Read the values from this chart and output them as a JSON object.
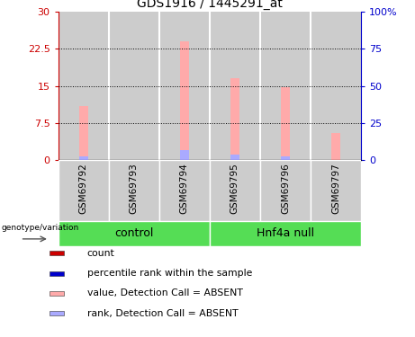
{
  "title": "GDS1916 / 1445291_at",
  "samples": [
    "GSM69792",
    "GSM69793",
    "GSM69794",
    "GSM69795",
    "GSM69796",
    "GSM69797"
  ],
  "pink_bar_values": [
    11.0,
    0.0,
    24.0,
    16.5,
    14.8,
    5.5
  ],
  "blue_bar_values": [
    2.7,
    0.0,
    6.6,
    3.6,
    2.4,
    0.0
  ],
  "ylim_left": [
    0,
    30
  ],
  "ylim_right": [
    0,
    100
  ],
  "yticks_left": [
    0,
    7.5,
    15,
    22.5,
    30
  ],
  "ytick_labels_left": [
    "0",
    "7.5",
    "15",
    "22.5",
    "30"
  ],
  "yticks_right": [
    0,
    25,
    50,
    75,
    100
  ],
  "ytick_labels_right": [
    "0",
    "25",
    "50",
    "75",
    "100%"
  ],
  "grid_values": [
    7.5,
    15,
    22.5
  ],
  "group_labels": [
    "control",
    "Hnf4a null"
  ],
  "green_color": "#55dd55",
  "bar_bg_color": "#cccccc",
  "pink_color": "#ffaaaa",
  "blue_color": "#aaaaff",
  "red_color": "#cc0000",
  "label_color_left": "#cc0000",
  "label_color_right": "#0000cc",
  "legend_items": [
    "count",
    "percentile rank within the sample",
    "value, Detection Call = ABSENT",
    "rank, Detection Call = ABSENT"
  ],
  "legend_colors": [
    "#cc0000",
    "#0000cc",
    "#ffaaaa",
    "#aaaaff"
  ]
}
